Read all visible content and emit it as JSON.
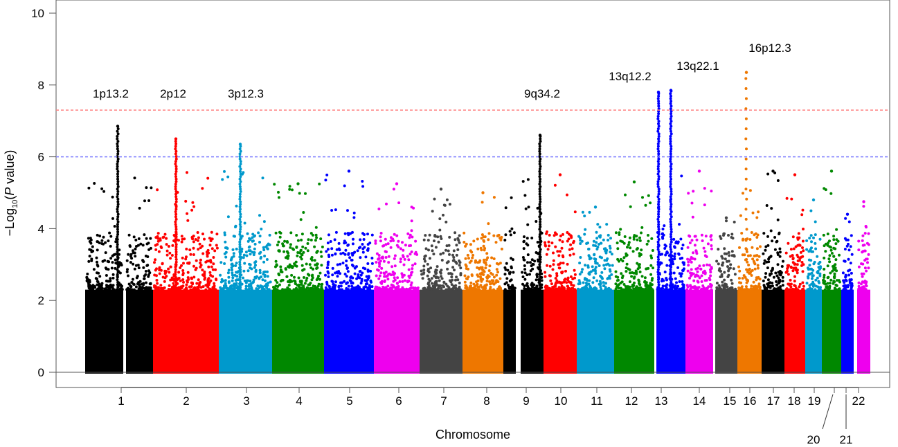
{
  "chart_data": {
    "type": "scatter",
    "title": "",
    "xlabel": "Chromosome",
    "ylabel": "−Log10(P value)",
    "ylim": [
      0,
      10
    ],
    "yticks": [
      "0",
      "2",
      "4",
      "6",
      "8",
      "10"
    ],
    "grid": false,
    "thresholds": [
      {
        "value": 7.3,
        "color": "#ff8080",
        "style": "dashed"
      },
      {
        "value": 6.0,
        "color": "#8080ff",
        "style": "dashed"
      }
    ],
    "chromosomes": [
      {
        "label": "1",
        "color": "#000000",
        "max": 6.85
      },
      {
        "label": "2",
        "color": "#ff0000",
        "max": 6.5
      },
      {
        "label": "3",
        "color": "#0099cc",
        "max": 6.35
      },
      {
        "label": "4",
        "color": "#008800",
        "max": 5.25
      },
      {
        "label": "5",
        "color": "#0000ff",
        "max": 5.6
      },
      {
        "label": "6",
        "color": "#ee00ee",
        "max": 5.25
      },
      {
        "label": "7",
        "color": "#444444",
        "max": 5.1
      },
      {
        "label": "8",
        "color": "#ee7700",
        "max": 5.0
      },
      {
        "label": "9",
        "color": "#000000",
        "max": 6.6
      },
      {
        "label": "10",
        "color": "#ff0000",
        "max": 5.5
      },
      {
        "label": "11",
        "color": "#0099cc",
        "max": 4.6
      },
      {
        "label": "12",
        "color": "#008800",
        "max": 5.3
      },
      {
        "label": "13",
        "color": "#0000ff",
        "max": 7.85
      },
      {
        "label": "14",
        "color": "#ee00ee",
        "max": 5.6
      },
      {
        "label": "15",
        "color": "#444444",
        "max": 4.3
      },
      {
        "label": "16",
        "color": "#ee7700",
        "max": 8.35
      },
      {
        "label": "17",
        "color": "#000000",
        "max": 5.6
      },
      {
        "label": "18",
        "color": "#ff0000",
        "max": 5.5
      },
      {
        "label": "19",
        "color": "#0099cc",
        "max": 4.8
      },
      {
        "label": "20",
        "color": "#008800",
        "max": 5.6
      },
      {
        "label": "21",
        "color": "#0000ff",
        "max": 4.4
      },
      {
        "label": "22",
        "color": "#ee00ee",
        "max": 4.75
      }
    ],
    "annotations": [
      {
        "label": "1p13.2",
        "chromosome": "1",
        "value": 6.85
      },
      {
        "label": "2p12",
        "chromosome": "2",
        "value": 6.5
      },
      {
        "label": "3p12.3",
        "chromosome": "3",
        "value": 6.35
      },
      {
        "label": "9q34.2",
        "chromosome": "9",
        "value": 6.6
      },
      {
        "label": "13q12.2",
        "chromosome": "13",
        "value": 7.8
      },
      {
        "label": "13q22.1",
        "chromosome": "13",
        "value": 7.85
      },
      {
        "label": "16p12.3",
        "chromosome": "16",
        "value": 8.35
      }
    ]
  }
}
